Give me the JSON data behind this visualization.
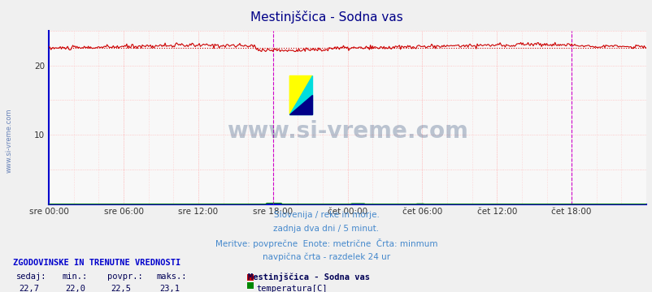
{
  "title": "Mestinjšcica - Sodna vas",
  "title_display": "Mestinjščica - Sodna vas",
  "bg_color": "#f0f0f0",
  "plot_bg_color": "#f8f8f8",
  "grid_color": "#ffbbbb",
  "xlim": [
    0,
    576
  ],
  "ylim": [
    0,
    25
  ],
  "yticks": [
    10,
    20
  ],
  "xtick_labels": [
    "sre 00:00",
    "sre 06:00",
    "sre 12:00",
    "sre 18:00",
    "čet 00:00",
    "čet 06:00",
    "čet 12:00",
    "čet 18:00"
  ],
  "xtick_positions": [
    0,
    72,
    144,
    216,
    288,
    360,
    432,
    504
  ],
  "temp_color": "#cc0000",
  "temp_dotted_color": "#cc0000",
  "flow_color": "#008800",
  "spine_color": "#0000cc",
  "vline_color": "#cc00cc",
  "vline_positions": [
    216,
    504
  ],
  "temp_avg": 22.5,
  "temp_min": 22.0,
  "temp_max": 23.1,
  "temp_current": 22.7,
  "flow_avg": 0.2,
  "flow_min": 0.1,
  "flow_max": 0.2,
  "flow_current": 0.2,
  "watermark": "www.si-vreme.com",
  "watermark_color": "#1a3a6b",
  "subtitle_lines": [
    "Slovenija / reke in morje.",
    "zadnja dva dni / 5 minut.",
    "Meritve: povprečne  Enote: metrične  Črta: minmum",
    "navpična črta - razdelek 24 ur"
  ],
  "subtitle_color": "#4488cc",
  "table_header_color": "#0000cc",
  "table_text_color": "#000055"
}
